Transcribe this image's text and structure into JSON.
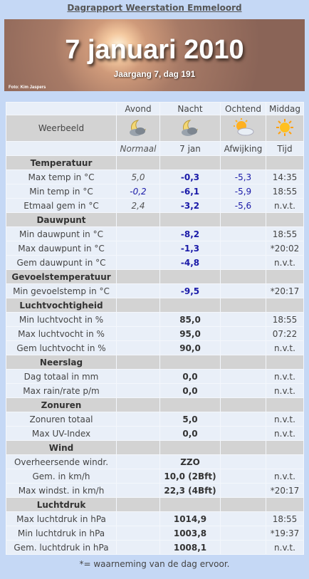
{
  "header": {
    "title": "Dagrapport Weerstation Emmeloord"
  },
  "banner": {
    "date": "7 januari 2010",
    "subtitle": "Jaargang 7, dag 191",
    "credit": "Foto: Kim Jaspers"
  },
  "table": {
    "columns": [
      "Avond",
      "Nacht",
      "Ochtend",
      "Middag"
    ],
    "weerbeeld": "Weerbeeld",
    "subheader": [
      "Normaal",
      "7 jan",
      "Afwijking",
      "Tijd"
    ],
    "sections": [
      {
        "title": "Temperatuur",
        "rows": [
          {
            "label": "Max temp in °C",
            "normaal": "5,0",
            "value": "-0,3",
            "afwijking": "-5,3",
            "tijd": "14:35"
          },
          {
            "label": "Min temp in °C",
            "normaal": "-0,2",
            "value": "-6,1",
            "afwijking": "-5,9",
            "tijd": "18:55"
          },
          {
            "label": "Etmaal gem in °C",
            "normaal": "2,4",
            "value": "-3,2",
            "afwijking": "-5,6",
            "tijd": "n.v.t."
          }
        ]
      },
      {
        "title": "Dauwpunt",
        "rows": [
          {
            "label": "Min dauwpunt in °C",
            "value": "-8,2",
            "tijd": "18:55"
          },
          {
            "label": "Max dauwpunt in °C",
            "value": "-1,3",
            "tijd": "*20:02"
          },
          {
            "label": "Gem dauwpunt in °C",
            "value": "-4,8",
            "tijd": "n.v.t."
          }
        ]
      },
      {
        "title": "Gevoelstemperatuur",
        "rows": [
          {
            "label": "Min gevoelstemp in °C",
            "value": "-9,5",
            "tijd": "*20:17"
          }
        ]
      },
      {
        "title": "Luchtvochtigheid",
        "rows": [
          {
            "label": "Min luchtvocht in %",
            "value": "85,0",
            "tijd": "18:55"
          },
          {
            "label": "Max luchtvocht in %",
            "value": "95,0",
            "tijd": "07:22"
          },
          {
            "label": "Gem luchtvocht in %",
            "value": "90,0",
            "tijd": "n.v.t."
          }
        ]
      },
      {
        "title": "Neerslag",
        "rows": [
          {
            "label": "Dag totaal in mm",
            "value": "0,0",
            "tijd": "n.v.t."
          },
          {
            "label": "Max rain/rate p/m",
            "value": "0,0",
            "tijd": "n.v.t."
          }
        ]
      },
      {
        "title": "Zonuren",
        "rows": [
          {
            "label": "Zonuren totaal",
            "value": "5,0",
            "tijd": "n.v.t."
          },
          {
            "label": "Max UV-Index",
            "value": "0,0",
            "tijd": "n.v.t."
          }
        ]
      },
      {
        "title": "Wind",
        "rows": [
          {
            "label": "Overheersende windr.",
            "value": "ZZO"
          },
          {
            "label": "Gem. in km/h",
            "value": "10,0 (2Bft)",
            "tijd": "n.v.t."
          },
          {
            "label": "Max windst. in km/h",
            "value": "22,3 (4Bft)",
            "tijd": "*20:17"
          }
        ]
      },
      {
        "title": "Luchtdruk",
        "rows": [
          {
            "label": "Max luchtdruk in hPa",
            "value": "1014,9",
            "tijd": "18:55"
          },
          {
            "label": "Min luchtdruk in hPa",
            "value": "1003,8",
            "tijd": "*19:37"
          },
          {
            "label": "Gem. luchtdruk in hPa",
            "value": "1008,1",
            "tijd": "n.v.t."
          }
        ]
      }
    ]
  },
  "footnote": "*= waarneming van de dag ervoor."
}
